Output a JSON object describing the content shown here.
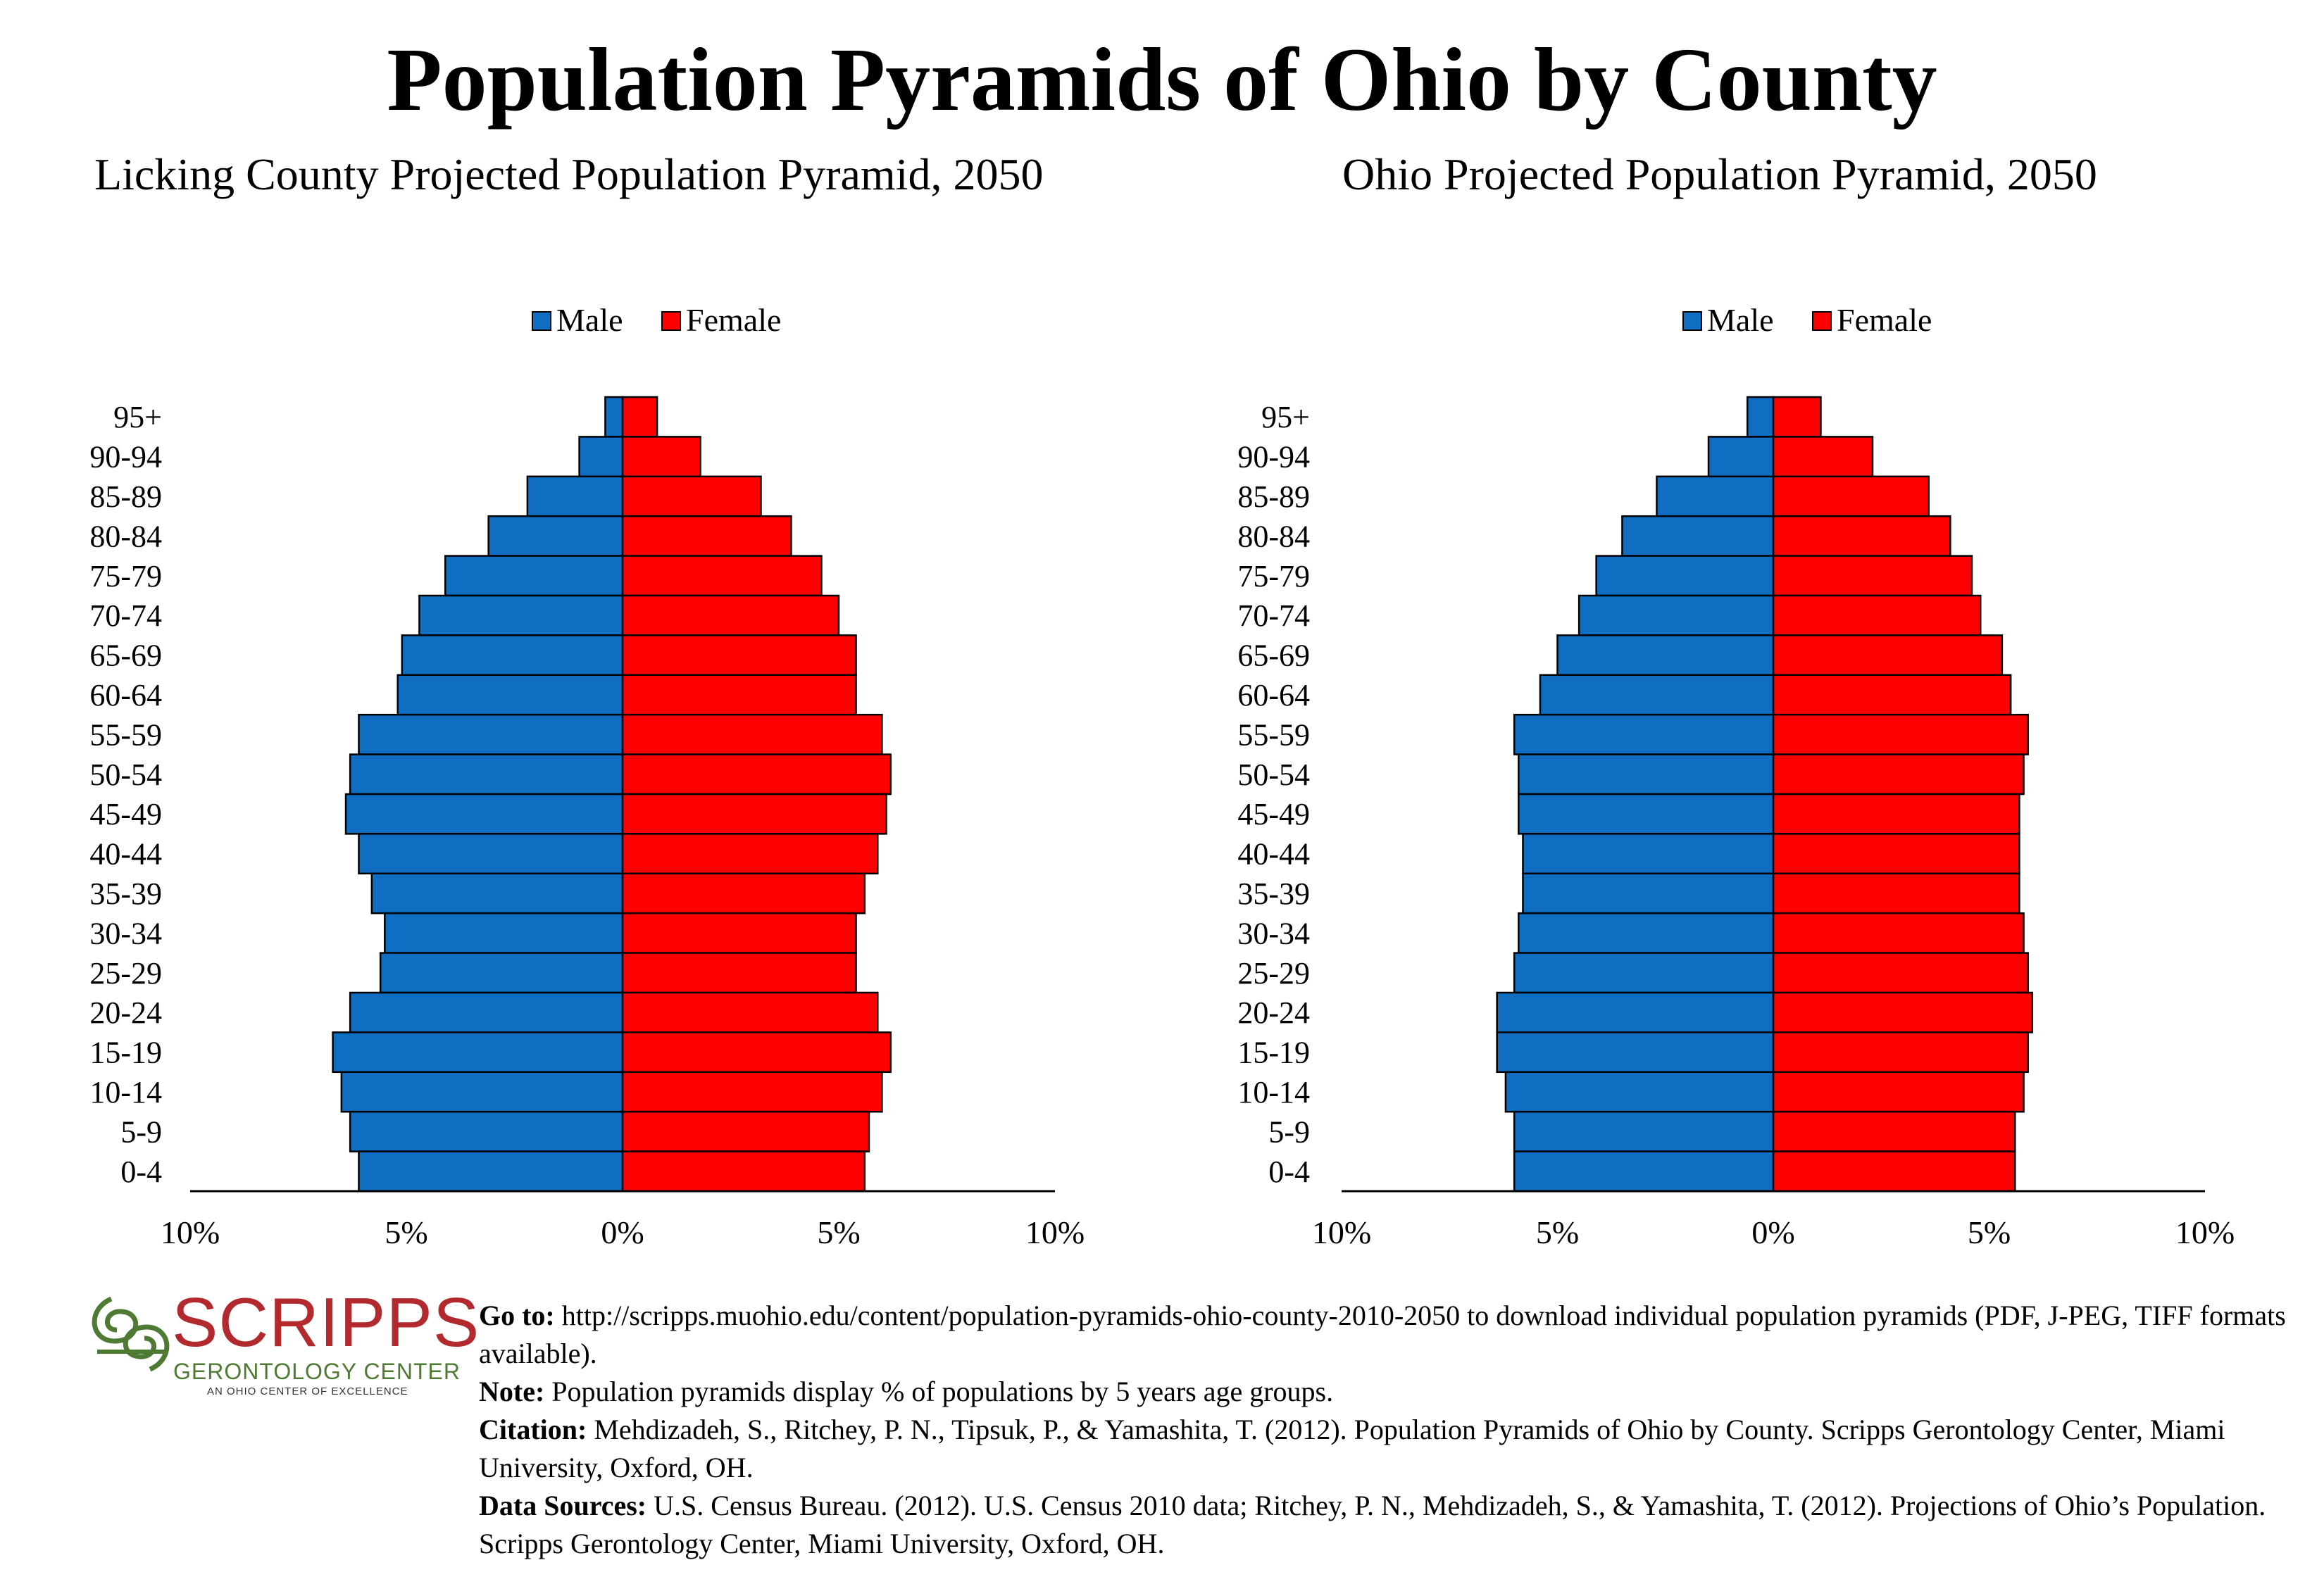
{
  "title": "Population Pyramids of Ohio by County",
  "chart_data": [
    {
      "type": "bar",
      "orientation": "horizontal-pyramid",
      "title": "Licking County Projected Population Pyramid, 2050",
      "categories": [
        "95+",
        "90-94",
        "85-89",
        "80-84",
        "75-79",
        "70-74",
        "65-69",
        "60-64",
        "55-59",
        "50-54",
        "45-49",
        "40-44",
        "35-39",
        "30-34",
        "25-29",
        "20-24",
        "15-19",
        "10-14",
        "5-9",
        "0-4"
      ],
      "series": [
        {
          "name": "Male",
          "color": "#0f6ec1",
          "values": [
            0.4,
            1.0,
            2.2,
            3.1,
            4.1,
            4.7,
            5.1,
            5.2,
            6.1,
            6.3,
            6.4,
            6.1,
            5.8,
            5.5,
            5.6,
            6.3,
            6.7,
            6.5,
            6.3,
            6.1
          ]
        },
        {
          "name": "Female",
          "color": "#ff0000",
          "values": [
            0.8,
            1.8,
            3.2,
            3.9,
            4.6,
            5.0,
            5.4,
            5.4,
            6.0,
            6.2,
            6.1,
            5.9,
            5.6,
            5.4,
            5.4,
            5.9,
            6.2,
            6.0,
            5.7,
            5.6
          ]
        }
      ],
      "xlim": [
        -10,
        10
      ],
      "xticks": [
        "10%",
        "5%",
        "0%",
        "5%",
        "10%"
      ],
      "legend": "top"
    },
    {
      "type": "bar",
      "orientation": "horizontal-pyramid",
      "title": "Ohio Projected Population Pyramid, 2050",
      "categories": [
        "95+",
        "90-94",
        "85-89",
        "80-84",
        "75-79",
        "70-74",
        "65-69",
        "60-64",
        "55-59",
        "50-54",
        "45-49",
        "40-44",
        "35-39",
        "30-34",
        "25-29",
        "20-24",
        "15-19",
        "10-14",
        "5-9",
        "0-4"
      ],
      "series": [
        {
          "name": "Male",
          "color": "#0f6ec1",
          "values": [
            0.6,
            1.5,
            2.7,
            3.5,
            4.1,
            4.5,
            5.0,
            5.4,
            6.0,
            5.9,
            5.9,
            5.8,
            5.8,
            5.9,
            6.0,
            6.4,
            6.4,
            6.2,
            6.0,
            6.0
          ]
        },
        {
          "name": "Female",
          "color": "#ff0000",
          "values": [
            1.1,
            2.3,
            3.6,
            4.1,
            4.6,
            4.8,
            5.3,
            5.5,
            5.9,
            5.8,
            5.7,
            5.7,
            5.7,
            5.8,
            5.9,
            6.0,
            5.9,
            5.8,
            5.6,
            5.6
          ]
        }
      ],
      "xlim": [
        -10,
        10
      ],
      "xticks": [
        "10%",
        "5%",
        "0%",
        "5%",
        "10%"
      ],
      "legend": "top"
    }
  ],
  "logo": {
    "name": "SCRIPPS",
    "subtitle": "GERONTOLOGY CENTER",
    "tagline": "AN OHIO CENTER OF EXCELLENCE",
    "green": "#4e7a34",
    "red": "#b22a2e"
  },
  "notes": {
    "goto_label": "Go to:",
    "goto_text": " http://scripps.muohio.edu/content/population-pyramids-ohio-county-2010-2050 to download individual population pyramids (PDF, J-PEG, TIFF formats available).",
    "note_label": "Note:",
    "note_text": " Population pyramids display % of populations by 5 years age groups.",
    "citation_label": "Citation:",
    "citation_text": " Mehdizadeh, S., Ritchey, P. N., Tipsuk, P., & Yamashita, T. (2012). Population Pyramids of Ohio by County. Scripps Gerontology Center, Miami University, Oxford, OH.",
    "sources_label": "Data Sources:",
    "sources_text": " U.S. Census Bureau. (2012). U.S. Census 2010 data; Ritchey, P. N., Mehdizadeh, S., & Yamashita, T. (2012). Projections of Ohio’s Population. Scripps Gerontology Center, Miami University, Oxford, OH."
  }
}
